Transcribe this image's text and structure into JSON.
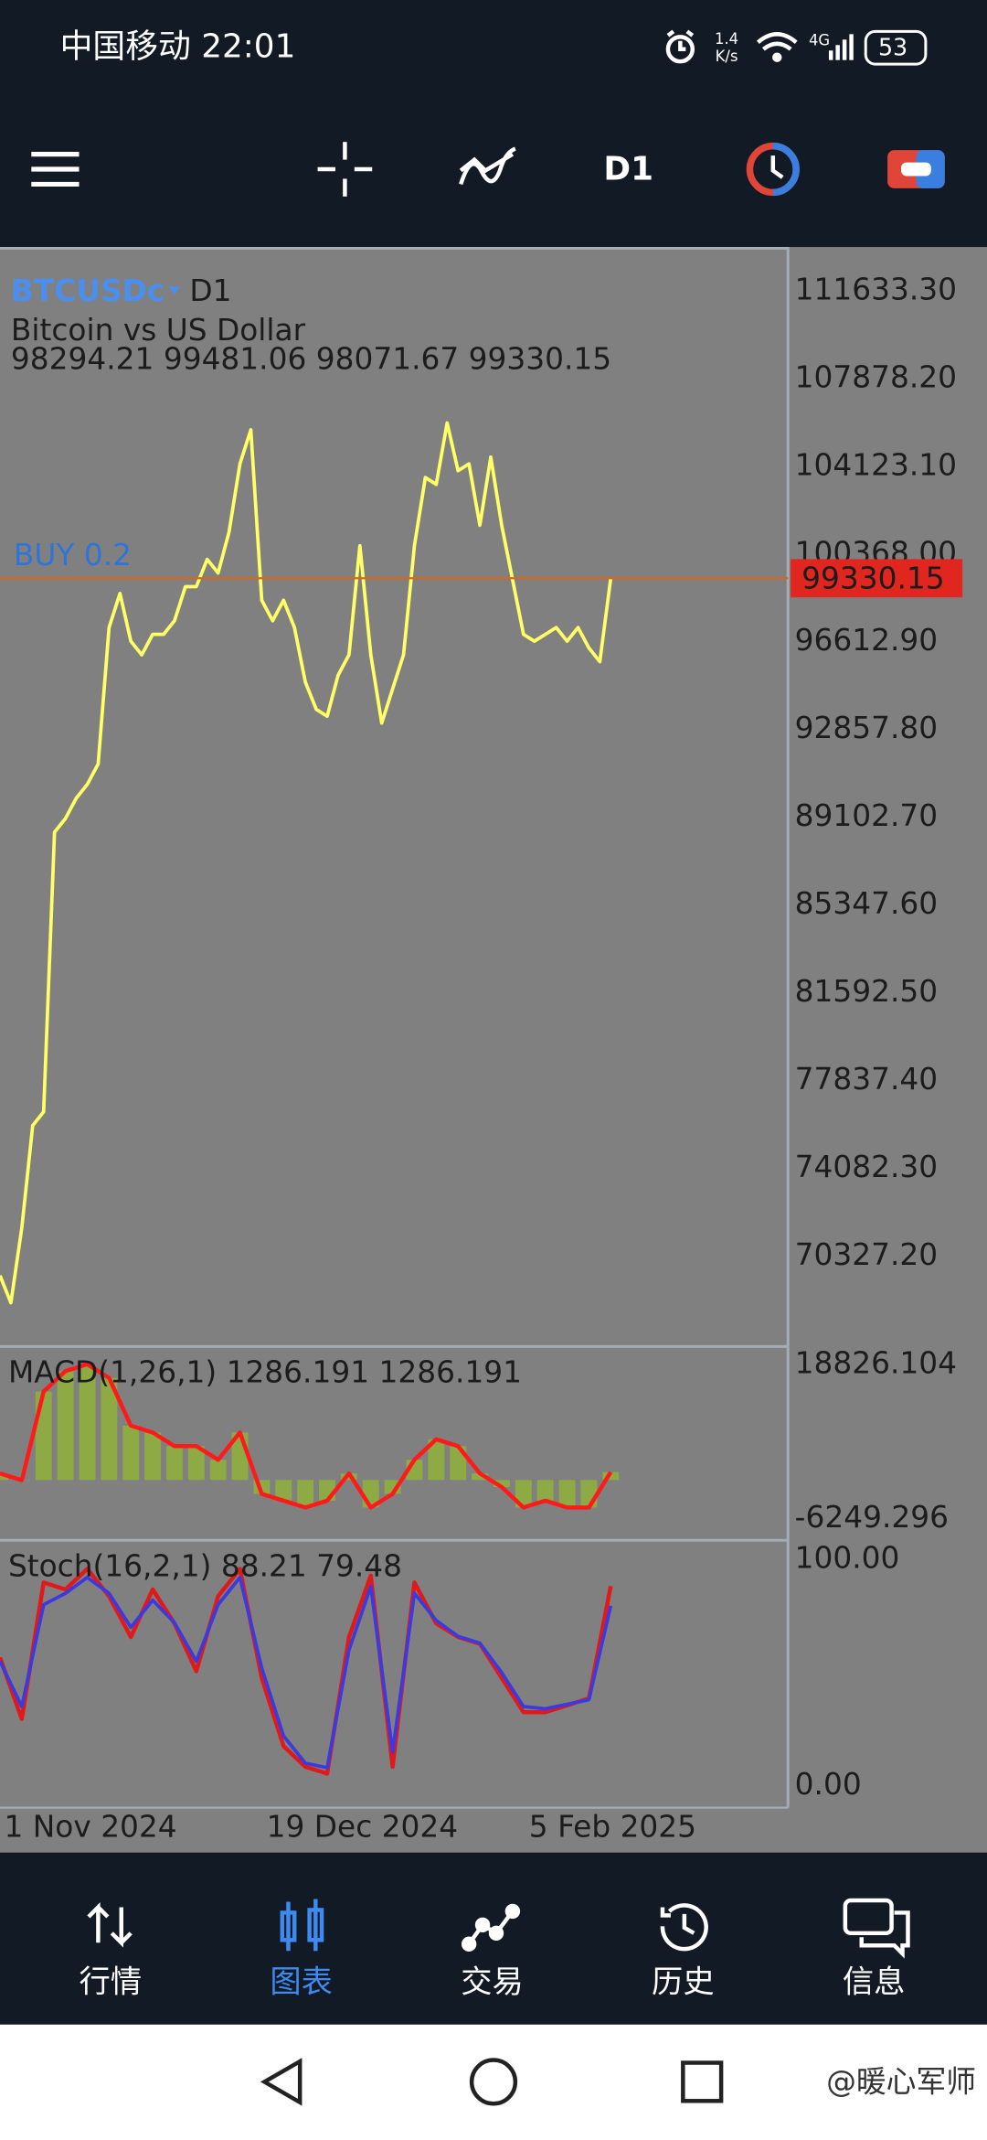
{
  "status_bar": {
    "carrier_time": "中国移动 22:01",
    "speed": "1.4",
    "speed_unit": "K/s",
    "network": "4G",
    "battery": "53"
  },
  "toolbar": {
    "timeframe": "D1"
  },
  "chart": {
    "symbol": "BTCUSDc",
    "timeframe": "D1",
    "description": "Bitcoin vs US Dollar",
    "ohlc": "98294.21 99481.06 98071.67 99330.15",
    "trade_label": "BUY 0.2",
    "current_price": 99330.15,
    "price_ticks": [
      {
        "value": 111633.3,
        "label": "111633.30"
      },
      {
        "value": 107878.2,
        "label": "107878.20"
      },
      {
        "value": 104123.1,
        "label": "104123.10"
      },
      {
        "value": 100368,
        "label": "100368.00"
      },
      {
        "value": 96612.9,
        "label": "96612.90"
      },
      {
        "value": 92857.8,
        "label": "92857.80"
      },
      {
        "value": 89102.7,
        "label": "89102.70"
      },
      {
        "value": 85347.6,
        "label": "85347.60"
      },
      {
        "value": 81592.5,
        "label": "81592.50"
      },
      {
        "value": 77837.4,
        "label": "77837.40"
      },
      {
        "value": 74082.3,
        "label": "74082.30"
      },
      {
        "value": 70327.2,
        "label": "70327.20"
      }
    ],
    "closes": [
      69505,
      68338,
      71547,
      75923,
      76506,
      88468,
      89052,
      89927,
      90510,
      91386,
      97221,
      98679,
      96637,
      96054,
      96929,
      96929,
      97512,
      98971,
      98971,
      100138,
      99555,
      101305,
      104223,
      105681,
      98388,
      97512,
      98388,
      97221,
      94887,
      93720,
      93428,
      95178,
      96054,
      100722,
      96054,
      93136,
      94595,
      96054,
      100722,
      103639,
      103347,
      105973,
      103931,
      104223,
      101597,
      104514,
      101597,
      99263,
      96929,
      96637,
      96929,
      97221,
      96637,
      97221,
      96345,
      95762,
      99330
    ],
    "line_color": "#ffff66",
    "macd": {
      "label": "MACD(1,26,1) 1286.191 1286.191",
      "ticks": [
        18826.104,
        -6249.296
      ],
      "values": [
        1074,
        -36,
        14388,
        17716,
        18826,
        16607,
        8840,
        7731,
        5512,
        5512,
        3293,
        7731,
        -2255,
        -3364,
        -4474,
        -3364,
        1074,
        -4474,
        -2255,
        3293,
        6621,
        5512,
        1074,
        -1145,
        -4474,
        -3364,
        -4474,
        -4474,
        1286.191
      ],
      "line_color": "#ff1a1a",
      "histogram_color": "#8fb23a"
    },
    "stoch": {
      "label": "Stoch(16,2,1) 88.21 79.48",
      "ticks": [
        {
          "value": 100,
          "label": "100.00"
        },
        {
          "value": 0,
          "label": "0.00"
        }
      ],
      "main": [
        56.6,
        29.5,
        89.8,
        86.7,
        95.8,
        83.7,
        65.7,
        86.7,
        71.7,
        50.6,
        83.7,
        95.8,
        47.6,
        17.5,
        8.4,
        5.4,
        65.7,
        92.8,
        8.4,
        89.8,
        71.7,
        65.7,
        62.7,
        47.6,
        32.5,
        32.5,
        35.5,
        38.6,
        88.21
      ],
      "signal": [
        55,
        35,
        80,
        85,
        92,
        85,
        70,
        82,
        72,
        55,
        80,
        92,
        52,
        22,
        10,
        8,
        60,
        88,
        15,
        85,
        73,
        66,
        63,
        50,
        35,
        34,
        36,
        38,
        79.48
      ],
      "main_color": "#e01a1a",
      "signal_color": "#3a3adf"
    },
    "x_labels": [
      "1 Nov 2024",
      "19 Dec 2024",
      "5 Feb 2025"
    ]
  },
  "bottom_nav": {
    "items": [
      "行情",
      "图表",
      "交易",
      "历史",
      "信息"
    ],
    "active": 1
  },
  "watermark": "@暖心军师"
}
